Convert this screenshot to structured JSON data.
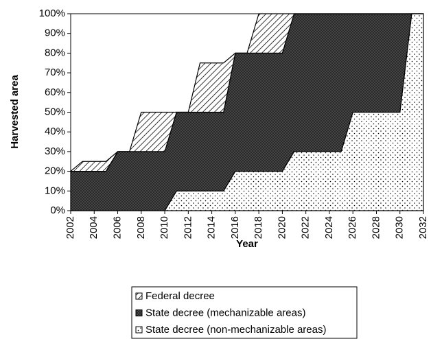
{
  "chart_data": {
    "type": "stacked_area",
    "xlabel": "Year",
    "ylabel": "Harvested area",
    "x": [
      2002,
      2003,
      2004,
      2005,
      2006,
      2007,
      2008,
      2009,
      2010,
      2011,
      2012,
      2013,
      2014,
      2015,
      2016,
      2017,
      2018,
      2019,
      2020,
      2021,
      2022,
      2023,
      2024,
      2025,
      2026,
      2027,
      2028,
      2029,
      2030,
      2031,
      2032
    ],
    "series": [
      {
        "name": "Federal decree",
        "color": "#000000",
        "pattern": "diagonal",
        "values": [
          0,
          5,
          5,
          5,
          0,
          0,
          20,
          20,
          20,
          0,
          0,
          25,
          25,
          25,
          0,
          0,
          20,
          20,
          20,
          0,
          0,
          0,
          0,
          0,
          0,
          0,
          0,
          0,
          0,
          0,
          0
        ]
      },
      {
        "name": "State decree (mechanizable areas)",
        "color": "#4d4d4d",
        "pattern": "crosshatch",
        "values": [
          20,
          20,
          20,
          20,
          30,
          30,
          30,
          30,
          30,
          40,
          40,
          40,
          40,
          40,
          60,
          60,
          60,
          60,
          60,
          70,
          70,
          70,
          70,
          70,
          50,
          50,
          50,
          50,
          50,
          0,
          0
        ]
      },
      {
        "name": "State decree (non-mechanizable areas)",
        "color": "#000000",
        "pattern": "dots",
        "values": [
          0,
          0,
          0,
          0,
          0,
          0,
          0,
          0,
          0,
          10,
          10,
          10,
          10,
          10,
          20,
          20,
          20,
          20,
          20,
          30,
          30,
          30,
          30,
          30,
          50,
          50,
          50,
          50,
          50,
          100,
          100
        ]
      }
    ],
    "xlim": [
      2002,
      2032
    ],
    "xticks": [
      2002,
      2004,
      2006,
      2008,
      2010,
      2012,
      2014,
      2016,
      2018,
      2020,
      2022,
      2024,
      2026,
      2028,
      2030,
      2032
    ],
    "ylim": [
      0,
      100
    ],
    "yticks": [
      {
        "value": 0,
        "label": "0%"
      },
      {
        "value": 10,
        "label": "10%"
      },
      {
        "value": 20,
        "label": "20%"
      },
      {
        "value": 30,
        "label": "30%"
      },
      {
        "value": 40,
        "label": "40%"
      },
      {
        "value": 50,
        "label": "50%"
      },
      {
        "value": 60,
        "label": "60%"
      },
      {
        "value": 70,
        "label": "70%"
      },
      {
        "value": 80,
        "label": "80%"
      },
      {
        "value": 90,
        "label": "90%"
      },
      {
        "value": 100,
        "label": "100%"
      }
    ],
    "legend": "bottom"
  }
}
